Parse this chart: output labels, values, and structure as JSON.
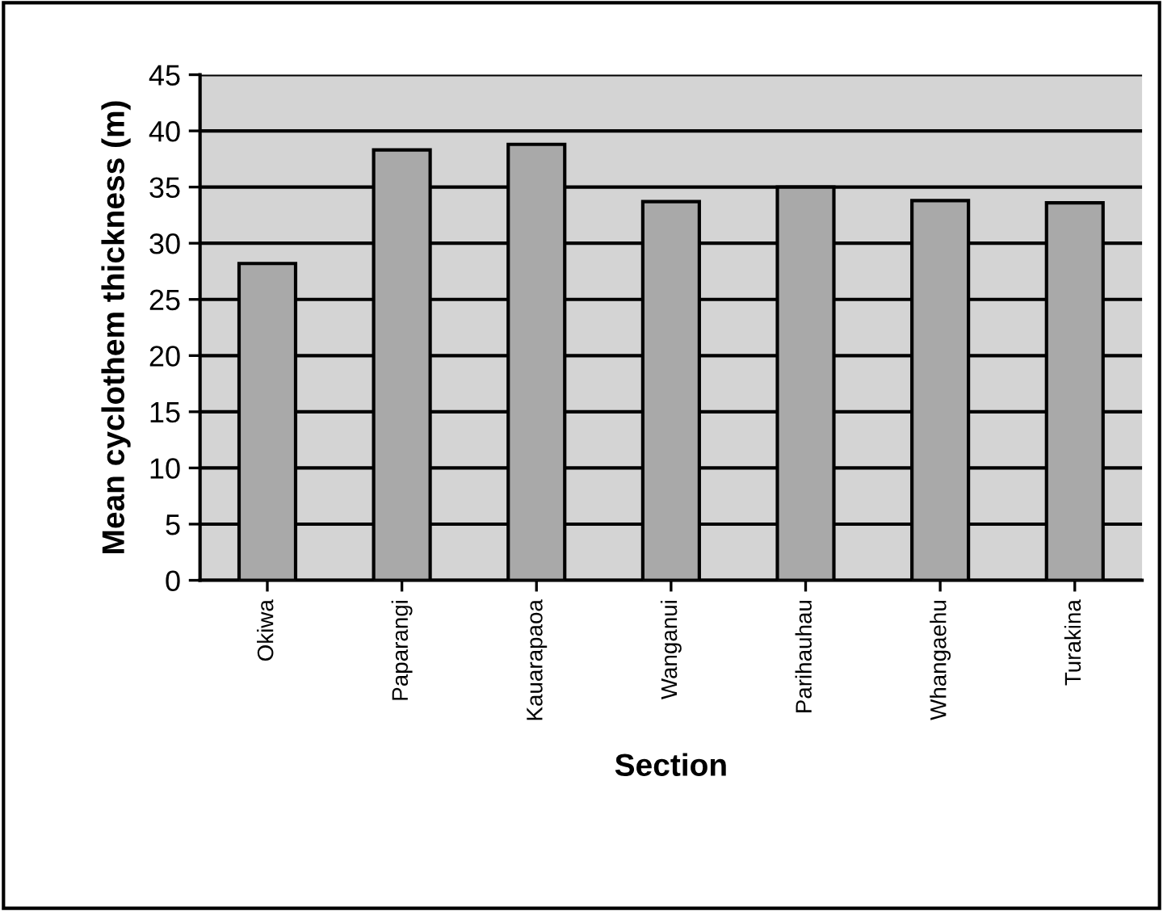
{
  "chart_data": {
    "type": "bar",
    "xlabel": "Section",
    "ylabel": "Mean cyclothem thickness (m)",
    "categories": [
      "Okiwa",
      "Paparangi",
      "Kauarapaoa",
      "Wanganui",
      "Parihauhau",
      "Whangaehu",
      "Turakina"
    ],
    "values": [
      28.2,
      38.3,
      38.8,
      33.7,
      35.0,
      33.8,
      33.6
    ],
    "color": "#a9a9a9",
    "ylim": [
      0,
      45
    ],
    "yticks": [
      0,
      5,
      10,
      15,
      20,
      25,
      30,
      35,
      40,
      45
    ],
    "grid": "y"
  }
}
